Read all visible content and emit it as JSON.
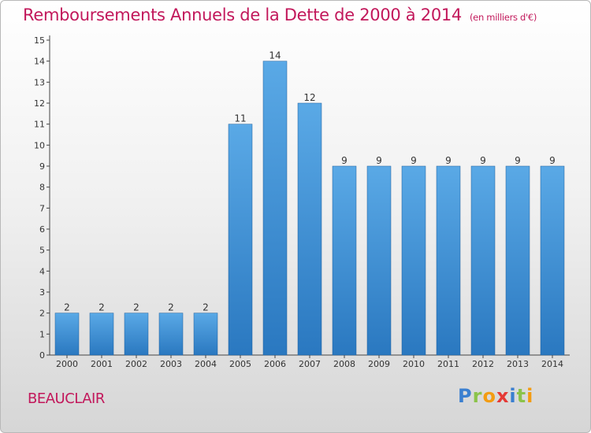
{
  "header": {
    "title": "Remboursements Annuels de la Dette de 2000 à 2014",
    "unit": "(en milliers d'€)"
  },
  "footer": {
    "city": "BEAUCLAIR",
    "logo": [
      "P",
      "r",
      "o",
      "x",
      "i",
      "t",
      "i"
    ]
  },
  "colors": {
    "title": "#c2185b",
    "bar_top": "#5aa9e6",
    "bar_bottom": "#2a78c0",
    "axis": "#555555"
  },
  "chart_data": {
    "type": "bar",
    "categories": [
      "2000",
      "2001",
      "2002",
      "2003",
      "2004",
      "2005",
      "2006",
      "2007",
      "2008",
      "2009",
      "2010",
      "2011",
      "2012",
      "2013",
      "2014"
    ],
    "values": [
      2,
      2,
      2,
      2,
      2,
      11,
      14,
      12,
      9,
      9,
      9,
      9,
      9,
      9,
      9
    ],
    "ylim": [
      0,
      15
    ],
    "yticks": [
      0,
      1,
      2,
      3,
      4,
      5,
      6,
      7,
      8,
      9,
      10,
      11,
      12,
      13,
      14,
      15
    ],
    "grid": false,
    "legend": "none",
    "data_labels": true
  }
}
